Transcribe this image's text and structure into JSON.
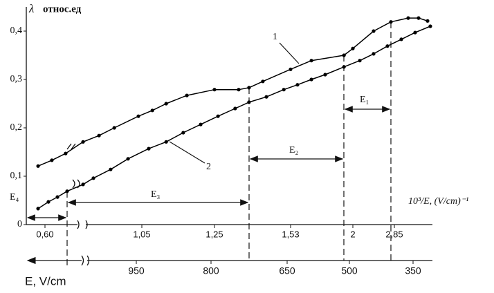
{
  "chart_data": {
    "type": "line",
    "y_label_symbol": "λ",
    "y_label": "относ.ед",
    "x_label": "10³/E, (V/cm)⁻¹",
    "x2_label": "E, V/cm",
    "ylim": [
      0,
      0.45
    ],
    "yticks": [
      0,
      {
        "value": 0.1,
        "label": "0,1"
      },
      {
        "value": 0.2,
        "label": "0,2"
      },
      {
        "value": 0.3,
        "label": "0,3"
      },
      {
        "value": 0.4,
        "label": "0,4"
      }
    ],
    "xlim": [
      0.5,
      3.6
    ],
    "xticks": [
      {
        "value": 0.6,
        "label": "0,60"
      },
      {
        "value": 1.05,
        "label": "1,05"
      },
      {
        "value": 1.25,
        "label": "1,25"
      },
      {
        "value": 1.53,
        "label": "1,53"
      },
      2,
      {
        "value": 2.85,
        "label": "2,85"
      }
    ],
    "x2ticks": [
      950,
      800,
      650,
      500,
      350
    ],
    "grid": false,
    "series": [
      {
        "name": "1",
        "color": "#000000",
        "x": [
          0.568,
          0.632,
          0.696,
          0.777,
          0.851,
          0.922,
          1.034,
          1.079,
          1.117,
          1.174,
          1.25,
          1.339,
          1.377,
          1.428,
          1.53,
          1.687,
          1.933,
          2.0,
          2.425,
          2.779,
          3.133,
          3.346,
          3.53
        ],
        "values": [
          0.121,
          0.133,
          0.147,
          0.171,
          0.184,
          0.2,
          0.224,
          0.236,
          0.25,
          0.267,
          0.279,
          0.279,
          0.283,
          0.296,
          0.321,
          0.339,
          0.35,
          0.364,
          0.4,
          0.419,
          0.427,
          0.427,
          0.421
        ]
      },
      {
        "name": "2",
        "color": "#000000",
        "x": [
          0.568,
          0.616,
          0.658,
          0.703,
          0.777,
          0.825,
          0.905,
          0.986,
          1.069,
          1.117,
          1.164,
          1.212,
          1.263,
          1.326,
          1.377,
          1.441,
          1.505,
          1.582,
          1.687,
          1.791,
          1.933,
          2.142,
          2.425,
          2.708,
          2.992,
          3.275,
          3.586
        ],
        "values": [
          0.033,
          0.047,
          0.057,
          0.069,
          0.083,
          0.096,
          0.114,
          0.136,
          0.157,
          0.171,
          0.19,
          0.207,
          0.224,
          0.24,
          0.253,
          0.264,
          0.279,
          0.289,
          0.3,
          0.31,
          0.326,
          0.339,
          0.353,
          0.369,
          0.383,
          0.397,
          0.41
        ]
      }
    ],
    "annotations": [
      "E₁",
      "E₂",
      "E₃",
      "E₄"
    ]
  }
}
